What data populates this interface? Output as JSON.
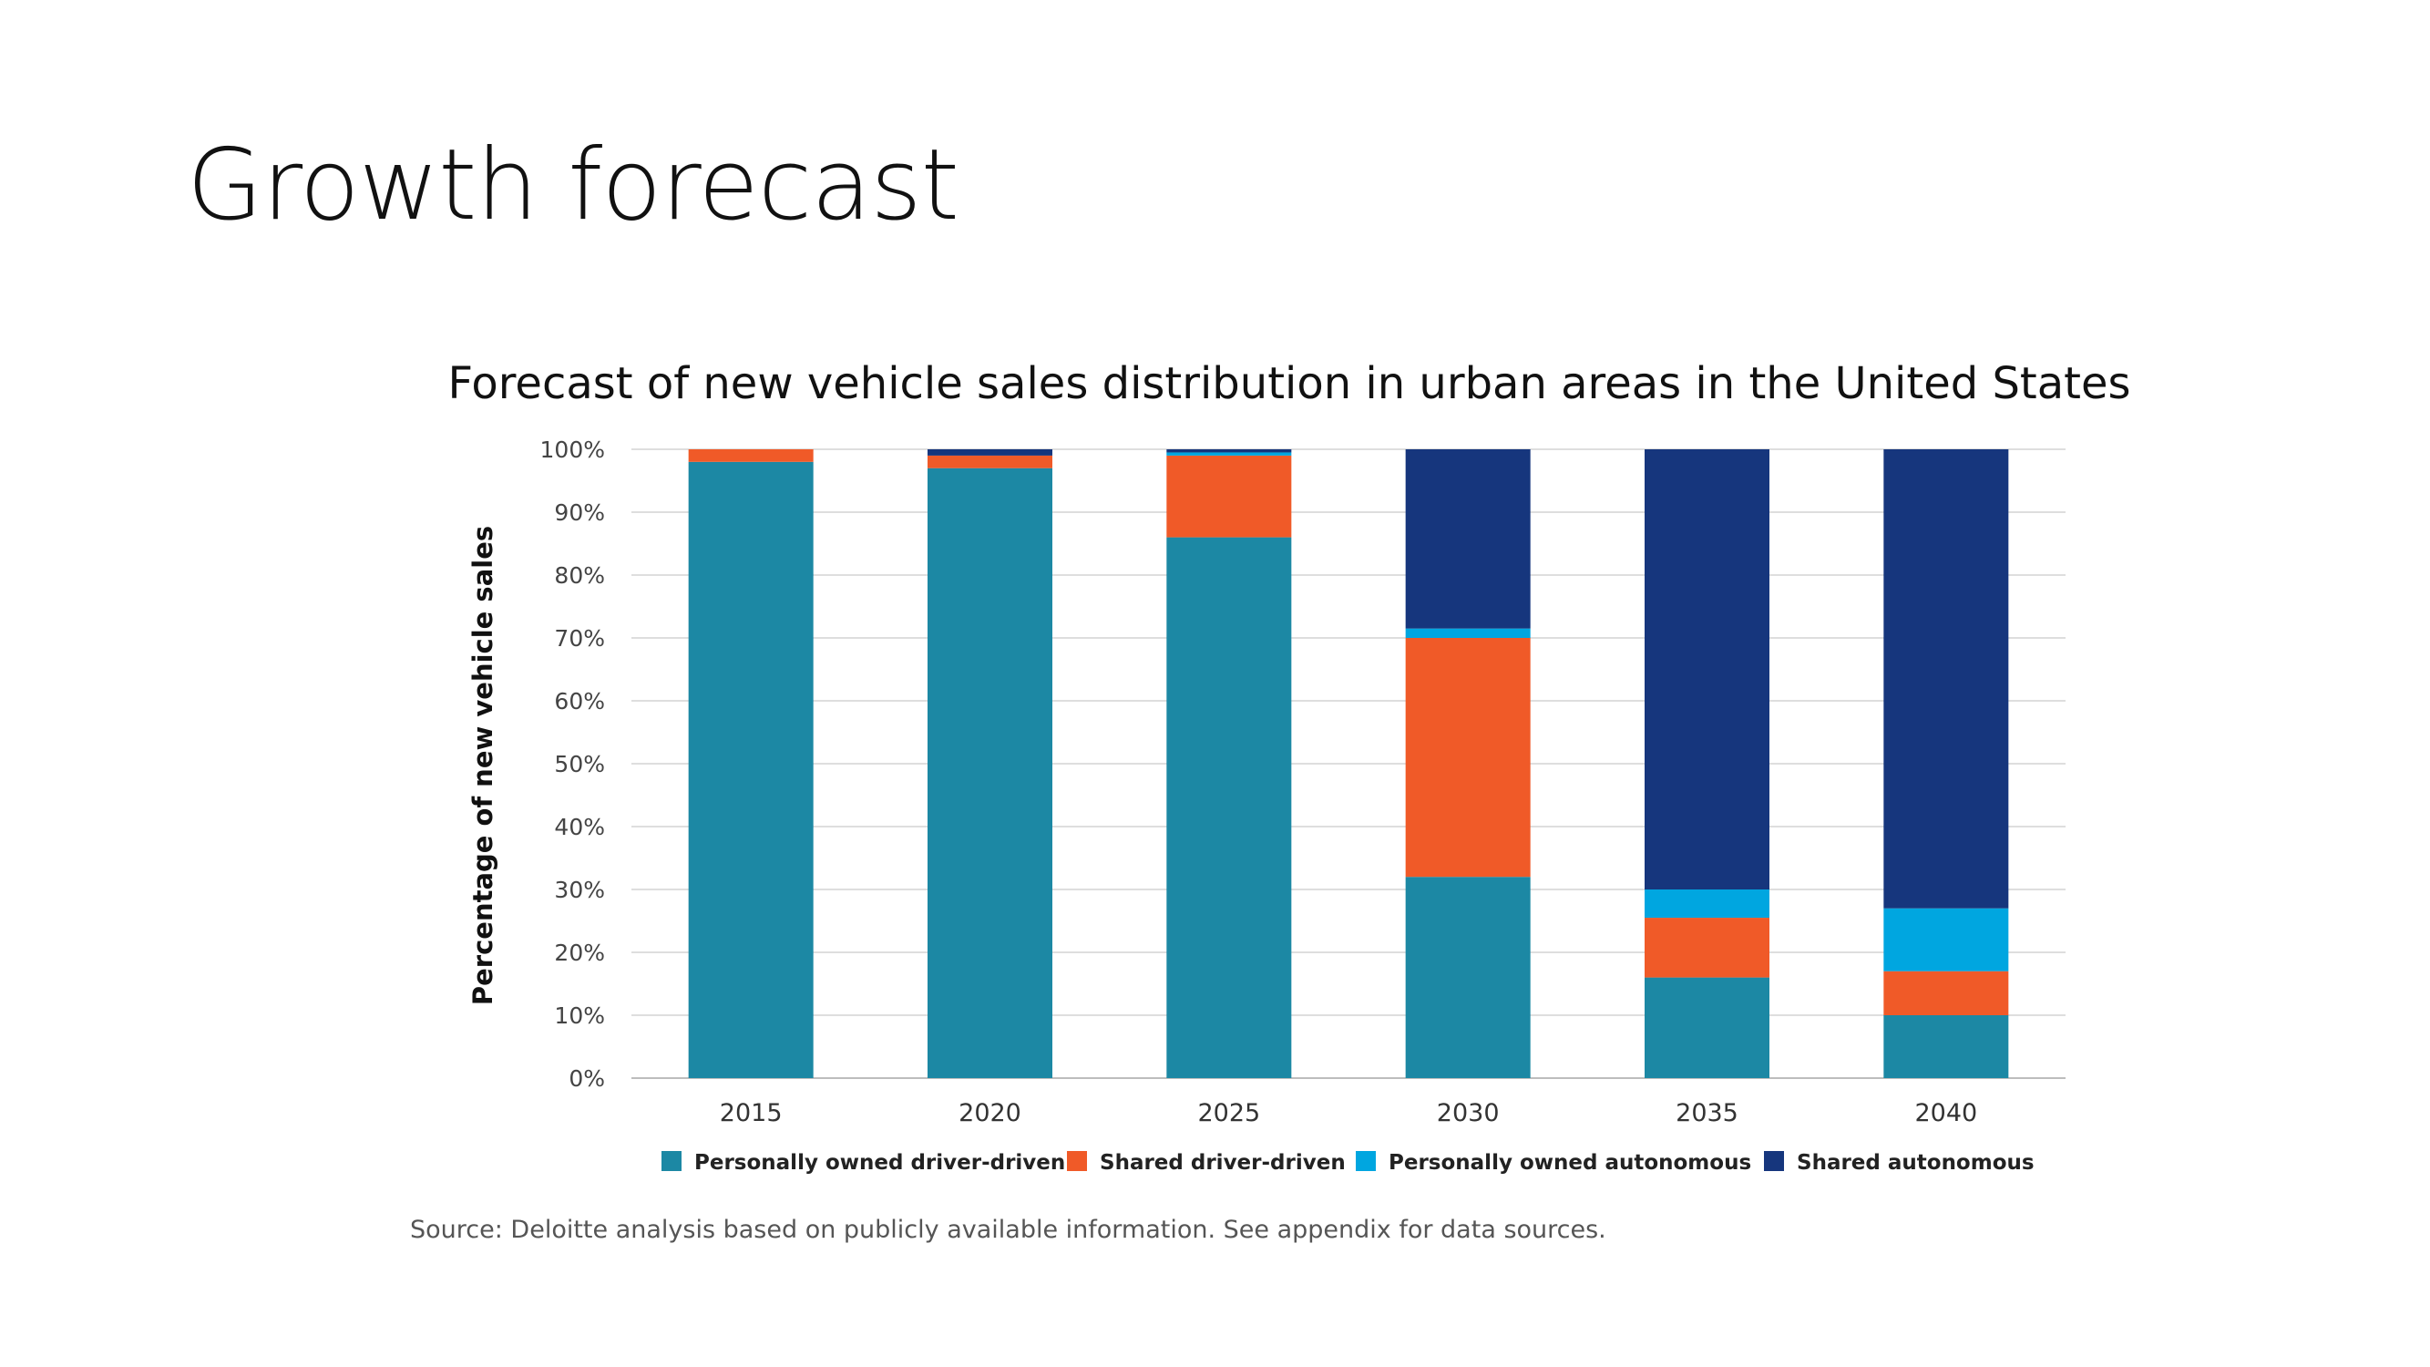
{
  "slide": {
    "title": "Growth forecast",
    "source": "Source: Deloitte analysis based on publicly available information. See appendix for data sources."
  },
  "chart_data": {
    "type": "bar",
    "stacked": true,
    "title": "Forecast of new vehicle sales distribution in urban areas in the United States",
    "xlabel": "",
    "ylabel": "Percentage of new vehicle sales",
    "ylim": [
      0,
      100
    ],
    "yticks": [
      "0%",
      "10%",
      "20%",
      "30%",
      "40%",
      "50%",
      "60%",
      "70%",
      "80%",
      "90%",
      "100%"
    ],
    "grid": true,
    "legend_position": "bottom",
    "categories": [
      "2015",
      "2020",
      "2025",
      "2030",
      "2035",
      "2040"
    ],
    "series": [
      {
        "name": "Personally owned driver-driven",
        "color": "#1c88a4",
        "values": [
          98,
          97,
          86,
          32,
          16,
          10
        ]
      },
      {
        "name": "Shared driver-driven",
        "color": "#f05a28",
        "values": [
          2,
          2,
          13,
          38,
          9.5,
          7
        ]
      },
      {
        "name": "Personally owned autonomous",
        "color": "#00a6e0",
        "values": [
          0,
          0,
          0.5,
          1.5,
          4.5,
          10
        ]
      },
      {
        "name": "Shared autonomous",
        "color": "#16367d",
        "values": [
          0,
          1,
          0.5,
          28.5,
          70,
          73
        ]
      }
    ]
  }
}
